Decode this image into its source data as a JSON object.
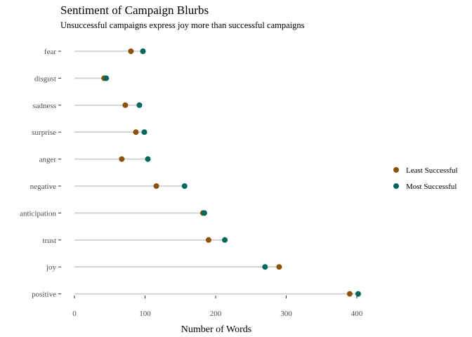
{
  "chart_data": {
    "type": "dumbbell",
    "title": "Sentiment of Campaign Blurbs",
    "subtitle": "Unsuccessful campaigns express joy more than successful campaigns",
    "xlabel": "Number of Words",
    "ylabel": "",
    "xlim": [
      0,
      400
    ],
    "xticks": [
      0,
      100,
      200,
      300,
      400
    ],
    "grid": false,
    "legend_placement": "right",
    "categories": [
      "fear",
      "disgust",
      "sadness",
      "surprise",
      "anger",
      "negative",
      "anticipation",
      "trust",
      "joy",
      "positive"
    ],
    "series": [
      {
        "name": "Least Successful",
        "color": "#8c510a",
        "values": [
          80,
          42,
          72,
          87,
          67,
          116,
          182,
          190,
          290,
          390
        ]
      },
      {
        "name": "Most Successful",
        "color": "#01665e",
        "values": [
          97,
          45,
          92,
          99,
          104,
          156,
          184,
          213,
          270,
          402
        ]
      }
    ],
    "segment_color": "#cccccc"
  }
}
